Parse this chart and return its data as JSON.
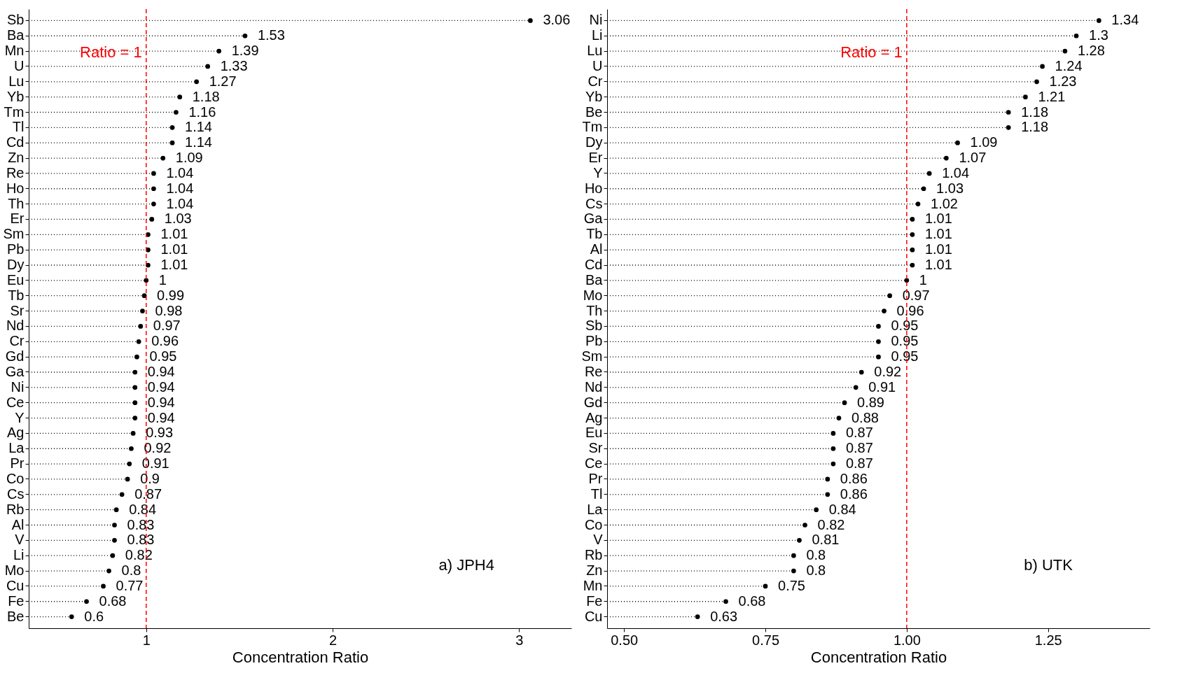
{
  "chart_data": [
    {
      "type": "lollipop",
      "orientation": "horizontal",
      "categories": [
        "Sb",
        "Ba",
        "Mn",
        "U",
        "Lu",
        "Yb",
        "Tm",
        "Tl",
        "Cd",
        "Zn",
        "Re",
        "Ho",
        "Th",
        "Er",
        "Sm",
        "Pb",
        "Dy",
        "Eu",
        "Tb",
        "Sr",
        "Nd",
        "Cr",
        "Gd",
        "Ga",
        "Ni",
        "Ce",
        "Y",
        "Ag",
        "La",
        "Pr",
        "Co",
        "Cs",
        "Rb",
        "Al",
        "V",
        "Li",
        "Mo",
        "Cu",
        "Fe",
        "Be"
      ],
      "values": [
        3.06,
        1.53,
        1.39,
        1.33,
        1.27,
        1.18,
        1.16,
        1.14,
        1.14,
        1.09,
        1.04,
        1.04,
        1.04,
        1.03,
        1.01,
        1.01,
        1.01,
        1,
        0.99,
        0.98,
        0.97,
        0.96,
        0.95,
        0.94,
        0.94,
        0.94,
        0.94,
        0.93,
        0.92,
        0.91,
        0.9,
        0.87,
        0.84,
        0.83,
        0.83,
        0.82,
        0.8,
        0.77,
        0.68,
        0.6
      ],
      "color": "#000000",
      "marker": "circle",
      "line_style": "dotted",
      "data_labels": true,
      "grid": false,
      "xlabel": "Concentration Ratio",
      "xlim": [
        0.37,
        3.28
      ],
      "xticks": [
        1,
        2,
        3
      ],
      "ref_lines": [
        {
          "axis": "x",
          "value": 1,
          "label": "Ratio = 1",
          "color": "#ff0000",
          "line_style": "dashed"
        }
      ],
      "annotations": [
        "a) JPH4"
      ]
    },
    {
      "type": "lollipop",
      "orientation": "horizontal",
      "categories": [
        "Ni",
        "Li",
        "Lu",
        "U",
        "Cr",
        "Yb",
        "Be",
        "Tm",
        "Dy",
        "Er",
        "Y",
        "Ho",
        "Cs",
        "Ga",
        "Tb",
        "Al",
        "Cd",
        "Ba",
        "Mo",
        "Th",
        "Sb",
        "Pb",
        "Sm",
        "Re",
        "Nd",
        "Gd",
        "Ag",
        "Eu",
        "Sr",
        "Ce",
        "Pr",
        "Tl",
        "La",
        "Co",
        "V",
        "Rb",
        "Zn",
        "Mn",
        "Fe",
        "Cu"
      ],
      "values": [
        1.34,
        1.3,
        1.28,
        1.24,
        1.23,
        1.21,
        1.18,
        1.18,
        1.09,
        1.07,
        1.04,
        1.03,
        1.02,
        1.01,
        1.01,
        1.01,
        1.01,
        1,
        0.97,
        0.96,
        0.95,
        0.95,
        0.95,
        0.92,
        0.91,
        0.89,
        0.88,
        0.87,
        0.87,
        0.87,
        0.86,
        0.86,
        0.84,
        0.82,
        0.81,
        0.8,
        0.8,
        0.75,
        0.68,
        0.63
      ],
      "color": "#000000",
      "marker": "circle",
      "line_style": "dotted",
      "data_labels": true,
      "grid": false,
      "xlabel": "Concentration Ratio",
      "xlim": [
        0.47,
        1.43
      ],
      "xticks": [
        {
          "value": 0.5,
          "label": "0.50"
        },
        {
          "value": 0.75,
          "label": "0.75"
        },
        {
          "value": 1,
          "label": "1.00"
        },
        {
          "value": 1.25,
          "label": "1.25"
        }
      ],
      "ref_lines": [
        {
          "axis": "x",
          "value": 1,
          "label": "Ratio = 1",
          "color": "#ff0000",
          "line_style": "dashed"
        }
      ],
      "annotations": [
        "b) UTK"
      ]
    }
  ]
}
